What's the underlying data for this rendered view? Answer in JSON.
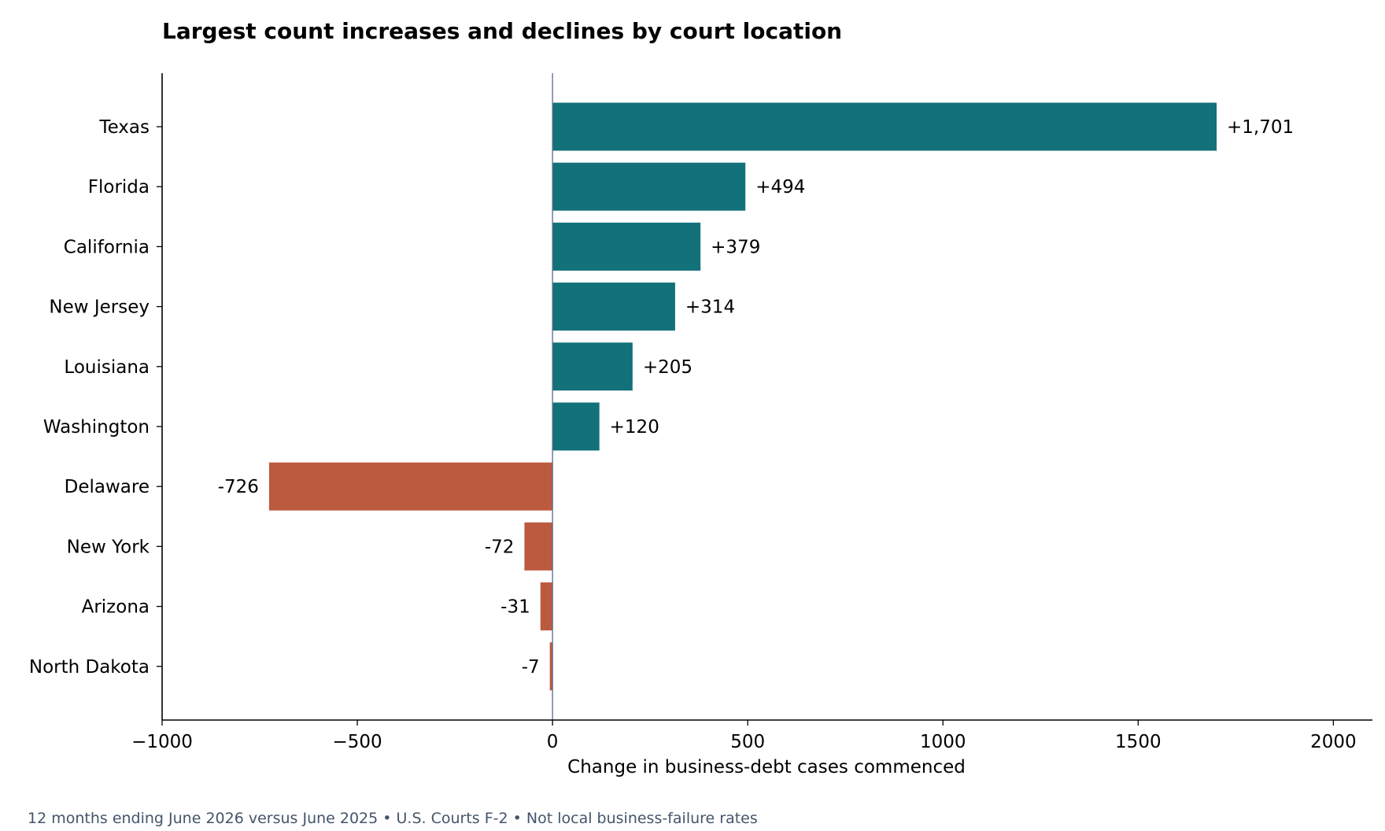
{
  "chart_data": {
    "type": "bar",
    "orientation": "horizontal",
    "title": "Largest count increases and declines by court location",
    "xlabel": "Change in business-debt cases commenced",
    "ylabel": "",
    "xlim": [
      -1000,
      2100
    ],
    "x_ticks": [
      -1000,
      -500,
      0,
      500,
      1000,
      1500,
      2000
    ],
    "x_tick_labels": [
      "−1000",
      "−500",
      "0",
      "500",
      "1000",
      "1500",
      "2000"
    ],
    "categories": [
      "Texas",
      "Florida",
      "California",
      "New Jersey",
      "Louisiana",
      "Washington",
      "Delaware",
      "New York",
      "Arizona",
      "North Dakota"
    ],
    "values": [
      1701,
      494,
      379,
      314,
      205,
      120,
      -726,
      -72,
      -31,
      -7
    ],
    "value_labels": [
      "+1,701",
      "+494",
      "+379",
      "+314",
      "+205",
      "+120",
      "-726",
      "-72",
      "-31",
      "-7"
    ],
    "colors": {
      "positive": "#13717a",
      "negative": "#bc5a3f",
      "zero_line": "#5a6b8c",
      "axis": "#000000"
    },
    "grid": false,
    "legend": "none",
    "footnote": "12 months ending June 2026 versus June 2025 • U.S. Courts F-2 • Not local business-failure rates"
  }
}
